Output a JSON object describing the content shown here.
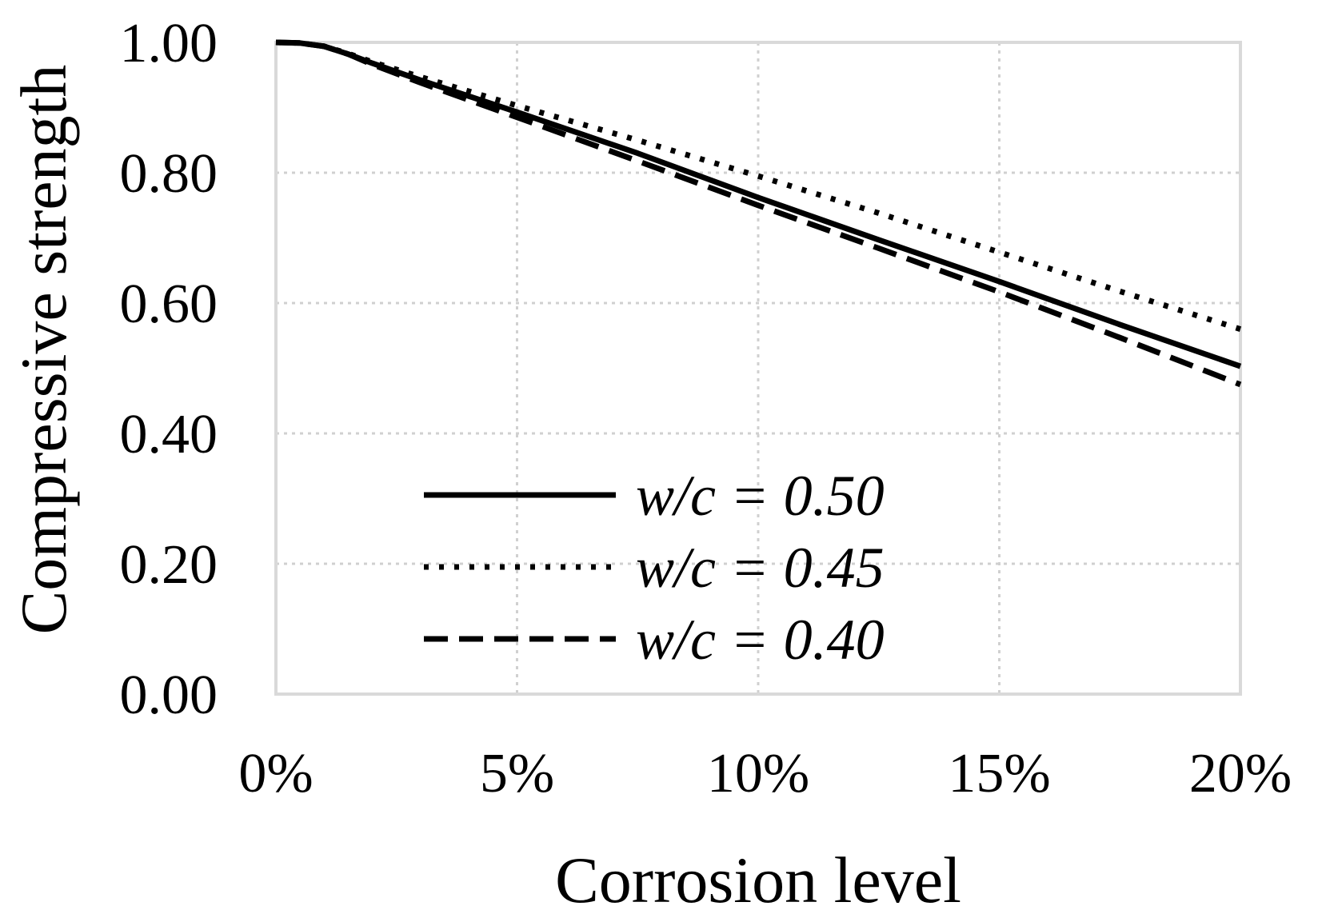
{
  "chart_data": {
    "type": "line",
    "title": "",
    "xlabel": "Corrosion level",
    "ylabel": "Compressive strength",
    "xlim": [
      0,
      20
    ],
    "ylim": [
      0,
      1.0
    ],
    "x_ticks": [
      {
        "value": 0,
        "label": "0%"
      },
      {
        "value": 5,
        "label": "5%"
      },
      {
        "value": 10,
        "label": "10%"
      },
      {
        "value": 15,
        "label": "15%"
      },
      {
        "value": 20,
        "label": "20%"
      }
    ],
    "y_ticks": [
      {
        "value": 0.0,
        "label": "0.00"
      },
      {
        "value": 0.2,
        "label": "0.20"
      },
      {
        "value": 0.4,
        "label": "0.40"
      },
      {
        "value": 0.6,
        "label": "0.60"
      },
      {
        "value": 0.8,
        "label": "0.80"
      },
      {
        "value": 1.0,
        "label": "1.00"
      }
    ],
    "grid": true,
    "legend_position": "center",
    "series": [
      {
        "name": "w/c = 0.50",
        "style": "solid",
        "color": "#000000",
        "x": [
          0,
          0.5,
          1,
          1.5,
          2,
          3,
          5,
          7.5,
          10,
          12.5,
          15,
          17.5,
          20
        ],
        "y": [
          1.0,
          0.999,
          0.994,
          0.982,
          0.968,
          0.942,
          0.893,
          0.83,
          0.762,
          0.697,
          0.633,
          0.567,
          0.503
        ]
      },
      {
        "name": "w/c = 0.45",
        "style": "dotted",
        "color": "#000000",
        "x": [
          0,
          0.5,
          1,
          1.5,
          2,
          3,
          5,
          7.5,
          10,
          12.5,
          15,
          17.5,
          20
        ],
        "y": [
          1.0,
          0.999,
          0.994,
          0.983,
          0.97,
          0.947,
          0.903,
          0.85,
          0.795,
          0.738,
          0.678,
          0.618,
          0.56
        ]
      },
      {
        "name": "w/c = 0.40",
        "style": "dashed",
        "color": "#000000",
        "x": [
          0,
          0.5,
          1,
          1.5,
          2,
          3,
          5,
          7.5,
          10,
          12.5,
          15,
          17.5,
          20
        ],
        "y": [
          1.0,
          0.999,
          0.994,
          0.982,
          0.966,
          0.938,
          0.885,
          0.818,
          0.75,
          0.684,
          0.617,
          0.547,
          0.475
        ]
      }
    ]
  }
}
